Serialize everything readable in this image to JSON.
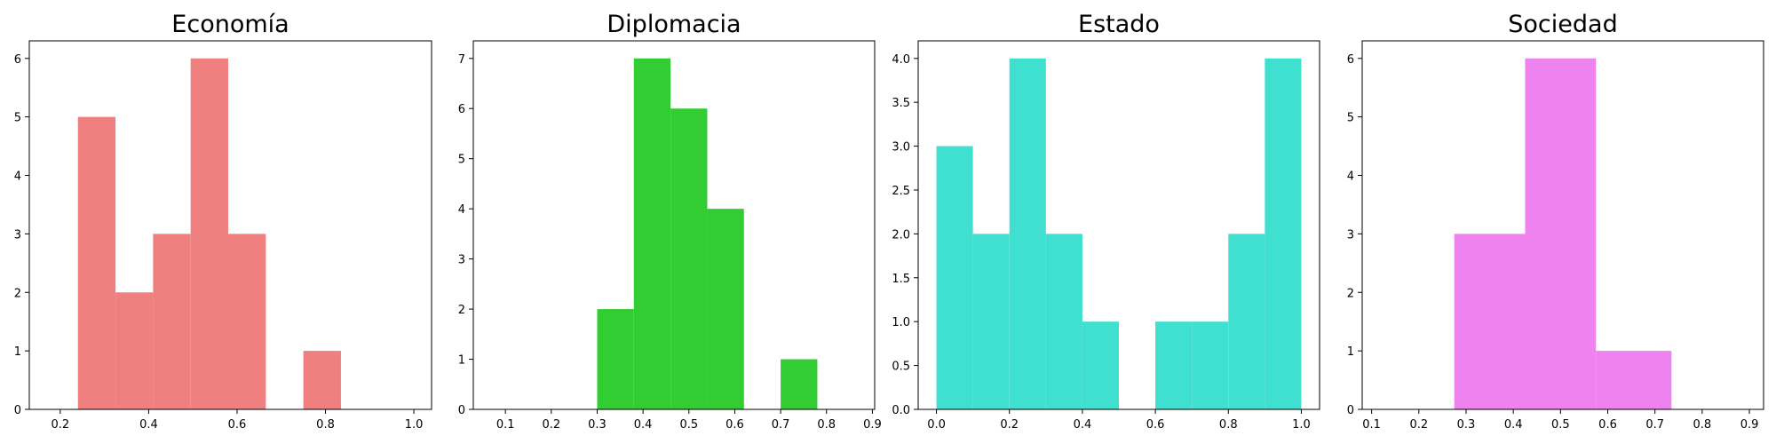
{
  "chart_data": [
    {
      "type": "bar",
      "title": "Economía",
      "color": "#F08080",
      "bins": [
        [
          0.24,
          0.325,
          5
        ],
        [
          0.325,
          0.41,
          2
        ],
        [
          0.41,
          0.495,
          3
        ],
        [
          0.495,
          0.58,
          6
        ],
        [
          0.58,
          0.665,
          3
        ],
        [
          0.75,
          0.835,
          1
        ]
      ],
      "xlim": [
        0.13,
        1.04
      ],
      "ylim": [
        0,
        6.3
      ],
      "xticks": [
        0.2,
        0.4,
        0.6,
        0.8,
        1.0
      ],
      "xtick_labels": [
        "0.2",
        "0.4",
        "0.6",
        "0.8",
        "1.0"
      ],
      "yticks": [
        0,
        1,
        2,
        3,
        4,
        5,
        6
      ],
      "ytick_labels": [
        "0",
        "1",
        "2",
        "3",
        "4",
        "5",
        "6"
      ]
    },
    {
      "type": "bar",
      "title": "Diplomacia",
      "color": "#32CD32",
      "bins": [
        [
          0.3,
          0.38,
          2
        ],
        [
          0.38,
          0.46,
          7
        ],
        [
          0.46,
          0.54,
          6
        ],
        [
          0.54,
          0.62,
          4
        ],
        [
          0.7,
          0.78,
          1
        ]
      ],
      "xlim": [
        0.03,
        0.905
      ],
      "ylim": [
        0,
        7.35
      ],
      "xticks": [
        0.1,
        0.2,
        0.3,
        0.4,
        0.5,
        0.6,
        0.7,
        0.8,
        0.9
      ],
      "xtick_labels": [
        "0.1",
        "0.2",
        "0.3",
        "0.4",
        "0.5",
        "0.6",
        "0.7",
        "0.8",
        "0.9"
      ],
      "yticks": [
        0,
        1,
        2,
        3,
        4,
        5,
        6,
        7
      ],
      "ytick_labels": [
        "0",
        "1",
        "2",
        "3",
        "4",
        "5",
        "6",
        "7"
      ]
    },
    {
      "type": "bar",
      "title": "Estado",
      "color": "#40E0D0",
      "bins": [
        [
          0.0,
          0.1,
          3
        ],
        [
          0.1,
          0.2,
          2
        ],
        [
          0.2,
          0.3,
          4
        ],
        [
          0.3,
          0.4,
          2
        ],
        [
          0.4,
          0.5,
          1
        ],
        [
          0.6,
          0.7,
          1
        ],
        [
          0.7,
          0.8,
          1
        ],
        [
          0.8,
          0.9,
          2
        ],
        [
          0.9,
          1.0,
          4
        ]
      ],
      "xlim": [
        -0.05,
        1.05
      ],
      "ylim": [
        0,
        4.2
      ],
      "xticks": [
        0.0,
        0.2,
        0.4,
        0.6,
        0.8,
        1.0
      ],
      "xtick_labels": [
        "0.0",
        "0.2",
        "0.4",
        "0.6",
        "0.8",
        "1.0"
      ],
      "yticks": [
        0,
        0.5,
        1,
        1.5,
        2,
        2.5,
        3,
        3.5,
        4
      ],
      "ytick_labels": [
        "0.0",
        "0.5",
        "1.0",
        "1.5",
        "2.0",
        "2.5",
        "3.0",
        "3.5",
        "4.0"
      ]
    },
    {
      "type": "bar",
      "title": "Sociedad",
      "color": "#EE82EE",
      "bins": [
        [
          0.275,
          0.425,
          3
        ],
        [
          0.425,
          0.575,
          6
        ],
        [
          0.575,
          0.735,
          1
        ]
      ],
      "xlim": [
        0.08,
        0.93
      ],
      "ylim": [
        0,
        6.3
      ],
      "xticks": [
        0.1,
        0.2,
        0.3,
        0.4,
        0.5,
        0.6,
        0.7,
        0.8,
        0.9
      ],
      "xtick_labels": [
        "0.1",
        "0.2",
        "0.3",
        "0.4",
        "0.5",
        "0.6",
        "0.7",
        "0.8",
        "0.9"
      ],
      "yticks": [
        0,
        1,
        2,
        3,
        4,
        5,
        6
      ],
      "ytick_labels": [
        "0",
        "1",
        "2",
        "3",
        "4",
        "5",
        "6"
      ]
    }
  ]
}
